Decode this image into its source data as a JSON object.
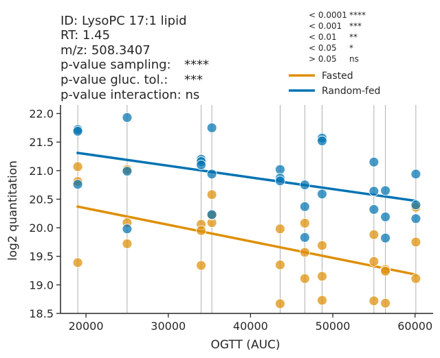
{
  "info": {
    "id_line": "ID: LysoPC 17:1 lipid",
    "rt_line": "RT: 1.45",
    "mz_line": "m/z: 508.3407",
    "p_sampling_label": "p-value sampling:",
    "p_sampling_value": "****",
    "p_gluc_label": "p-value gluc. tol.:",
    "p_gluc_value": "***",
    "p_interaction_line": "p-value interaction: ns"
  },
  "pvalue_legend": [
    {
      "threshold": "< 0.0001",
      "symbol": "****"
    },
    {
      "threshold": "< 0.001",
      "symbol": "***"
    },
    {
      "threshold": "< 0.01",
      "symbol": "**"
    },
    {
      "threshold": "< 0.05",
      "symbol": "*"
    },
    {
      "threshold": "> 0.05",
      "symbol": "ns"
    }
  ],
  "chart_data": {
    "type": "scatter",
    "title": "",
    "xlabel": "OGTT (AUC)",
    "ylabel": "log2 quantitation",
    "xlim": [
      16900,
      62200
    ],
    "ylim": [
      18.5,
      22.15
    ],
    "xticks": [
      20000,
      30000,
      40000,
      50000,
      60000
    ],
    "xtick_labels": [
      "20000",
      "30000",
      "40000",
      "50000",
      "60000"
    ],
    "yticks": [
      18.5,
      19.0,
      19.5,
      20.0,
      20.5,
      21.0,
      21.5,
      22.0
    ],
    "ytick_labels": [
      "18.5",
      "19.0",
      "19.5",
      "20.0",
      "20.5",
      "21.0",
      "21.5",
      "22.0"
    ],
    "grid": "vertical lines at subject OGTT values",
    "legend_position": "top-right",
    "vlines": [
      19000,
      25000,
      34000,
      35300,
      43600,
      46600,
      48700,
      55000,
      56400,
      60100
    ],
    "series": [
      {
        "name": "Fasted",
        "color": "#de8f05",
        "points": [
          [
            19000,
            21.07
          ],
          [
            19000,
            20.81
          ],
          [
            19000,
            19.39
          ],
          [
            25000,
            21.02
          ],
          [
            25000,
            20.09
          ],
          [
            25000,
            19.72
          ],
          [
            34000,
            20.06
          ],
          [
            34000,
            19.95
          ],
          [
            34000,
            19.34
          ],
          [
            35300,
            20.58
          ],
          [
            35300,
            20.09
          ],
          [
            35300,
            20.22
          ],
          [
            43600,
            19.98
          ],
          [
            43600,
            19.35
          ],
          [
            43600,
            18.67
          ],
          [
            46600,
            20.08
          ],
          [
            46600,
            19.57
          ],
          [
            46600,
            19.11
          ],
          [
            48700,
            19.69
          ],
          [
            48700,
            19.15
          ],
          [
            48700,
            18.73
          ],
          [
            55000,
            19.88
          ],
          [
            55000,
            19.41
          ],
          [
            55000,
            18.72
          ],
          [
            56400,
            19.27
          ],
          [
            56400,
            19.24
          ],
          [
            56400,
            18.68
          ],
          [
            60100,
            20.36
          ],
          [
            60100,
            19.75
          ],
          [
            60100,
            19.11
          ]
        ],
        "fit": {
          "x": [
            19000,
            60100
          ],
          "y": [
            20.37,
            19.18
          ]
        }
      },
      {
        "name": "Random-fed",
        "color": "#0173b2",
        "points": [
          [
            19000,
            21.72
          ],
          [
            19000,
            21.69
          ],
          [
            19000,
            20.76
          ],
          [
            25000,
            21.93
          ],
          [
            25000,
            20.99
          ],
          [
            25000,
            19.98
          ],
          [
            34000,
            21.2
          ],
          [
            34000,
            21.16
          ],
          [
            34000,
            21.1
          ],
          [
            35300,
            21.75
          ],
          [
            35300,
            20.94
          ],
          [
            35300,
            20.23
          ],
          [
            43600,
            21.02
          ],
          [
            43600,
            20.87
          ],
          [
            43600,
            20.82
          ],
          [
            46600,
            20.75
          ],
          [
            46600,
            20.37
          ],
          [
            46600,
            19.83
          ],
          [
            48700,
            21.57
          ],
          [
            48700,
            21.52
          ],
          [
            48700,
            20.59
          ],
          [
            55000,
            21.15
          ],
          [
            55000,
            20.64
          ],
          [
            55000,
            20.32
          ],
          [
            56400,
            20.65
          ],
          [
            56400,
            20.19
          ],
          [
            56400,
            19.82
          ],
          [
            60100,
            20.94
          ],
          [
            60100,
            20.4
          ],
          [
            60100,
            20.16
          ]
        ],
        "fit": {
          "x": [
            19000,
            60100
          ],
          "y": [
            21.31,
            20.47
          ]
        }
      }
    ]
  }
}
